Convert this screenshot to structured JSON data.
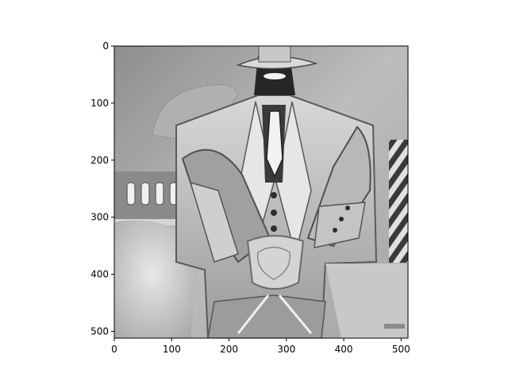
{
  "chart_data": {
    "type": "heatmap",
    "colormap": "gray",
    "grid": false,
    "legend": "none",
    "title": "",
    "xlabel": "",
    "ylabel": "",
    "image_shape": [
      512,
      512
    ],
    "xlim": [
      0,
      512
    ],
    "ylim": [
      512,
      0
    ],
    "x_ticks": [
      {
        "value": 0,
        "label": "0"
      },
      {
        "value": 100,
        "label": "100"
      },
      {
        "value": 200,
        "label": "200"
      },
      {
        "value": 300,
        "label": "300"
      },
      {
        "value": 400,
        "label": "400"
      },
      {
        "value": 500,
        "label": "500"
      }
    ],
    "y_ticks": [
      {
        "value": 0,
        "label": "0"
      },
      {
        "value": 100,
        "label": "100"
      },
      {
        "value": 200,
        "label": "200"
      },
      {
        "value": 300,
        "label": "300"
      },
      {
        "value": 400,
        "label": "400"
      },
      {
        "value": 500,
        "label": "500"
      }
    ]
  }
}
